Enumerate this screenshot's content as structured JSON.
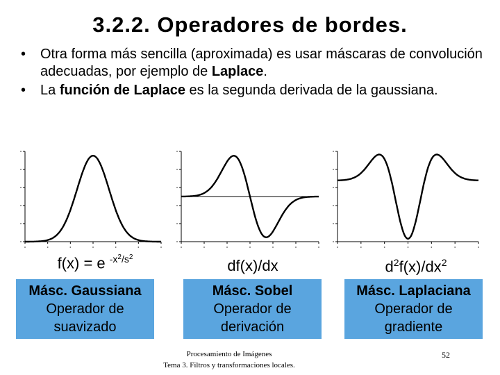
{
  "slide": {
    "title": "3.2.2. Operadores de bordes.",
    "bullets": [
      {
        "parts": [
          {
            "text": "Otra forma más sencilla (aproximada) es usar máscaras de convolución adecuadas, por ejemplo de ",
            "bold": false
          },
          {
            "text": "Laplace",
            "bold": true
          },
          {
            "text": ".",
            "bold": false
          }
        ]
      },
      {
        "parts": [
          {
            "text": "La ",
            "bold": false
          },
          {
            "text": "función de Laplace",
            "bold": true
          },
          {
            "text": " es la segunda derivada de la gaussiana.",
            "bold": false
          }
        ]
      }
    ],
    "bullet_glyph": "•"
  },
  "plots": [
    {
      "curve": "gaussian"
    },
    {
      "curve": "first-derivative"
    },
    {
      "curve": "second-derivative"
    }
  ],
  "formulas": {
    "gaussian": {
      "base": "f(x) = e ",
      "exponent_a": "-x",
      "exponent_sq1": "2",
      "exponent_b": "/s",
      "exponent_sq2": "2"
    },
    "first_derivative": "df(x)/dx",
    "second_derivative": {
      "a": "d",
      "sq1": "2",
      "b": "f(x)/dx",
      "sq2": "2"
    }
  },
  "boxes": [
    {
      "title": "Másc. Gaussiana",
      "line1": "Operador de",
      "line2": "suavizado"
    },
    {
      "title": "Másc. Sobel",
      "line1": "Operador de",
      "line2": "derivación"
    },
    {
      "title": "Másc. Laplaciana",
      "line1": "Operador de",
      "line2": "gradiente"
    }
  ],
  "footer": {
    "line1": "Procesamiento de Imágenes",
    "line2": "Tema 3. Filtros y transformaciones locales.",
    "page": "52"
  },
  "colors": {
    "box_fill": "#5aa5df",
    "curve": "#000000"
  }
}
